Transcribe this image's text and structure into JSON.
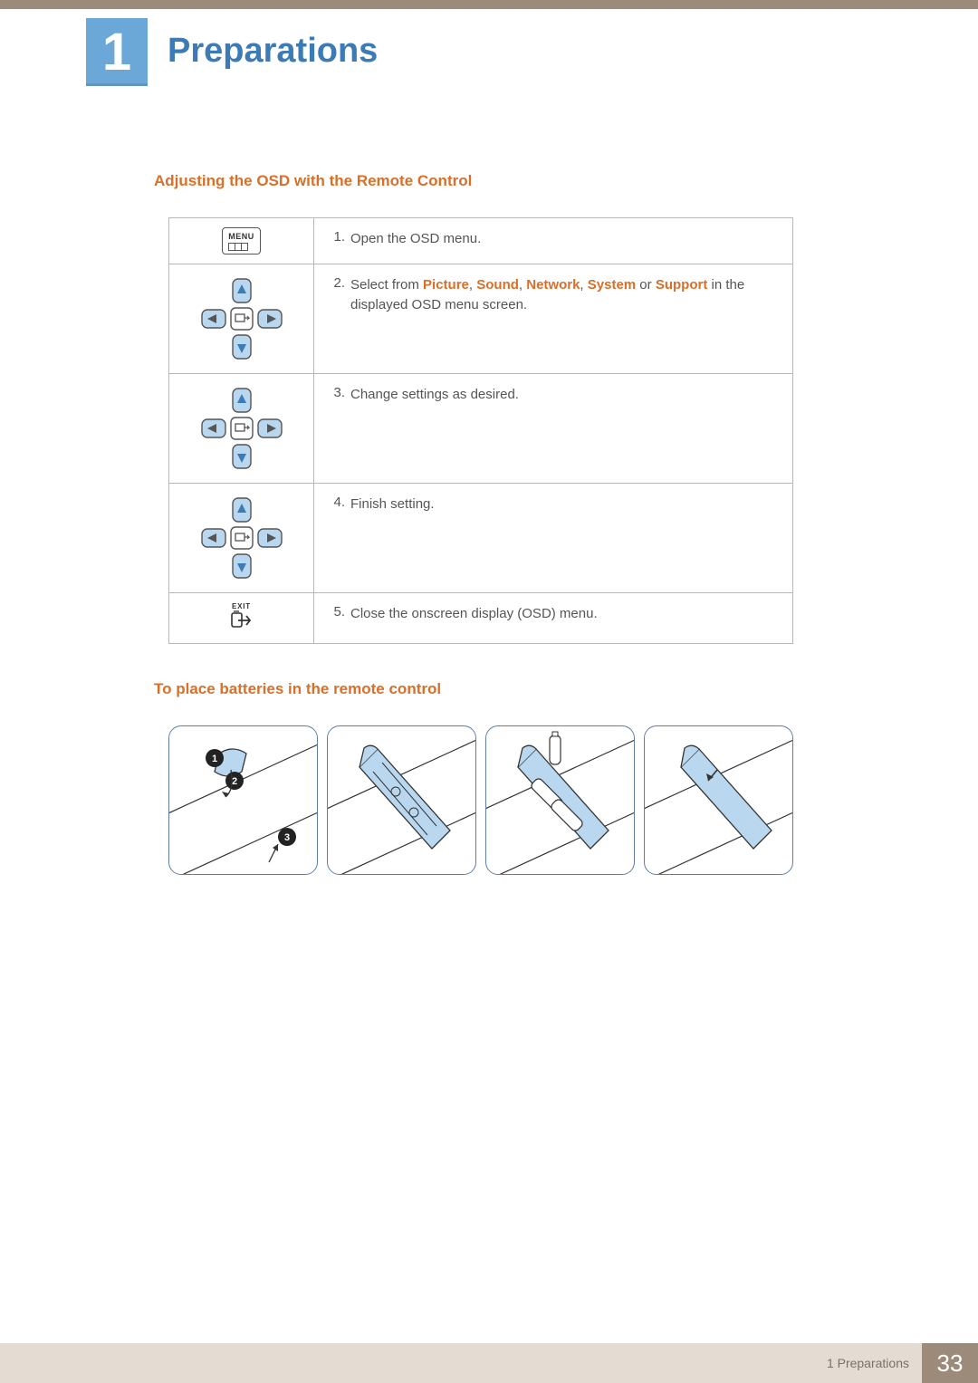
{
  "colors": {
    "brand_brown": "#9c8b7a",
    "brand_blue": "#6ba8d8",
    "title_blue": "#3c7bb5",
    "accent_orange": "#d96f28",
    "border_gray": "#b8b8b8",
    "text_gray": "#555555",
    "dpad_fill": "#b9d7ef",
    "dpad_stroke": "#555555",
    "panel_border": "#5f7fa8",
    "footer_bg": "#e4dcd3",
    "footer_text": "#7d7066"
  },
  "chapter": {
    "number": "1",
    "title": "Preparations"
  },
  "section1": {
    "heading": "Adjusting the OSD with the Remote Control",
    "rows": [
      {
        "icon": "menu",
        "num": "1.",
        "text": "Open the OSD menu."
      },
      {
        "icon": "dpad",
        "num": "2.",
        "prefix": "Select from ",
        "highlights": [
          "Picture",
          "Sound",
          "Network",
          "System",
          "Support"
        ],
        "join_last": " or ",
        "join": ", ",
        "suffix": " in the displayed OSD menu screen."
      },
      {
        "icon": "dpad",
        "num": "3.",
        "text": "Change settings as desired."
      },
      {
        "icon": "dpad",
        "num": "4.",
        "text": "Finish setting."
      },
      {
        "icon": "exit",
        "num": "5.",
        "text": "Close the onscreen display (OSD) menu."
      }
    ],
    "menu_label": "MENU",
    "exit_label": "EXIT"
  },
  "section2": {
    "heading": "To place batteries in the remote control",
    "panels": [
      {
        "callouts": [
          "1",
          "2",
          "3"
        ]
      },
      {
        "callouts": []
      },
      {
        "callouts": []
      },
      {
        "callouts": []
      }
    ]
  },
  "footer": {
    "label": "1 Preparations",
    "page": "33"
  }
}
